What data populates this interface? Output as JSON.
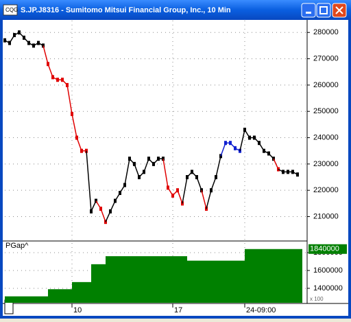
{
  "window": {
    "title": "S.JP.J8316 - Sumitomo Mitsui Financial Group, Inc., 10 Min"
  },
  "chart_data": [
    {
      "type": "line",
      "categories": [
        null,
        null,
        null,
        null,
        null,
        null,
        null,
        null,
        null,
        null,
        null,
        null,
        null,
        null,
        "10",
        null,
        null,
        null,
        null,
        null,
        null,
        null,
        null,
        null,
        null,
        null,
        null,
        null,
        null,
        null,
        null,
        null,
        null,
        null,
        null,
        "17",
        null,
        null,
        null,
        null,
        null,
        null,
        null,
        null,
        null,
        null,
        null,
        null,
        null,
        null,
        "24-09:00",
        null,
        null,
        null,
        null,
        null,
        null,
        null,
        null,
        null,
        null,
        null
      ],
      "values": [
        277000,
        276000,
        279000,
        280000,
        278000,
        276000,
        275000,
        276000,
        275000,
        268000,
        263000,
        262000,
        262000,
        260000,
        249000,
        240000,
        235000,
        235000,
        212000,
        216000,
        213000,
        208000,
        212000,
        216000,
        219000,
        222000,
        232000,
        230000,
        225000,
        227000,
        232000,
        230000,
        232000,
        232000,
        221000,
        218000,
        220000,
        215000,
        225000,
        227000,
        225000,
        220000,
        213000,
        220000,
        225000,
        233000,
        238000,
        238000,
        236000,
        235000,
        243000,
        240000,
        240000,
        238000,
        235000,
        234000,
        232000,
        228000,
        227000,
        227000,
        227000,
        226000
      ],
      "colors": [
        "#000",
        "#000",
        "#000",
        "#000",
        "#000",
        "#000",
        "#000",
        "#000",
        "#000",
        "#e00000",
        "#e00000",
        "#e00000",
        "#e00000",
        "#e00000",
        "#e00000",
        "#e00000",
        "#e00000",
        "#e00000",
        "#000",
        "#000",
        "#e00000",
        "#e00000",
        "#000",
        "#000",
        "#000",
        "#000",
        "#000",
        "#000",
        "#000",
        "#000",
        "#000",
        "#000",
        "#000",
        "#000",
        "#e00000",
        "#e00000",
        "#e00000",
        "#e00000",
        "#000",
        "#000",
        "#000",
        "#000",
        "#e00000",
        "#000",
        "#000",
        "#000",
        "#1020d0",
        "#1020d0",
        "#1020d0",
        "#1020d0",
        "#000",
        "#000",
        "#000",
        "#000",
        "#000",
        "#000",
        "#000",
        "#e00000",
        "#000",
        "#000",
        "#000",
        "#000"
      ],
      "ylim": [
        201000,
        284500
      ],
      "yticks": [
        210000,
        220000,
        230000,
        240000,
        250000,
        260000,
        270000,
        280000
      ],
      "grid": true
    },
    {
      "type": "area",
      "title": "PGap^",
      "scale_label": "x 100",
      "color": "#008000",
      "values": [
        1310000,
        1310000,
        1310000,
        1310000,
        1310000,
        1310000,
        1310000,
        1310000,
        1310000,
        1390000,
        1390000,
        1390000,
        1390000,
        1390000,
        1470000,
        1470000,
        1470000,
        1470000,
        1670000,
        1670000,
        1670000,
        1760000,
        1760000,
        1760000,
        1760000,
        1760000,
        1760000,
        1760000,
        1760000,
        1760000,
        1760000,
        1760000,
        1760000,
        1760000,
        1760000,
        1760000,
        1760000,
        1760000,
        1710000,
        1710000,
        1710000,
        1710000,
        1710000,
        1710000,
        1710000,
        1710000,
        1710000,
        1710000,
        1710000,
        1710000,
        1840000,
        1840000,
        1840000,
        1840000,
        1840000,
        1840000,
        1840000,
        1840000,
        1840000,
        1840000,
        1840000,
        1840000
      ],
      "ylim": [
        1238000,
        1915000
      ],
      "yticks": [
        1400000,
        1600000,
        1800000
      ],
      "grid": true
    }
  ]
}
